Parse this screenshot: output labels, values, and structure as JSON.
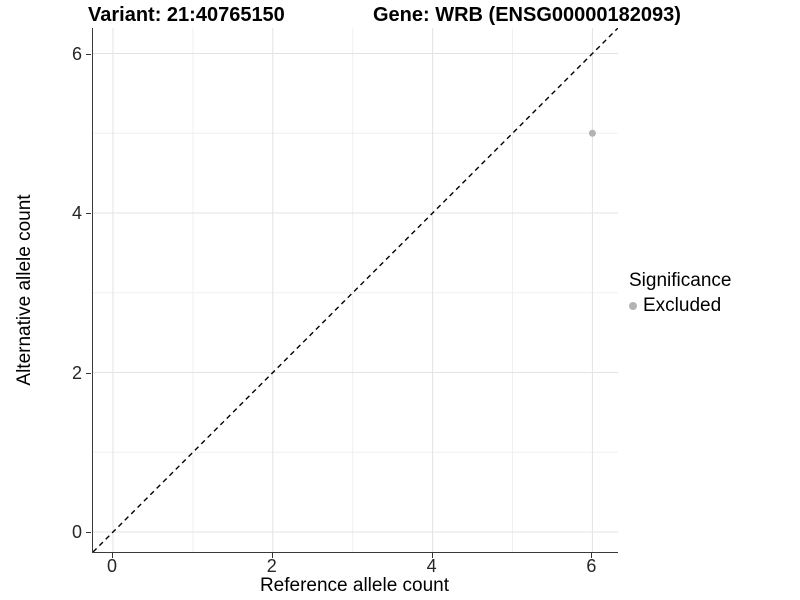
{
  "header": {
    "variant_title": "Variant: 21:40765150",
    "gene_title": "Gene: WRB (ENSG00000182093)"
  },
  "axes": {
    "x": {
      "label": "Reference allele count",
      "tick_labels": [
        "0",
        "2",
        "4",
        "6"
      ]
    },
    "y": {
      "label": "Alternative allele count",
      "tick_labels": [
        "0",
        "2",
        "4",
        "6"
      ]
    }
  },
  "legend": {
    "title": "Significance",
    "items": [
      {
        "label": "Excluded",
        "color": "#b3b3b3"
      }
    ]
  },
  "colors": {
    "background": "#ffffff",
    "axis_line": "#3a3a3a",
    "tick_mark": "#333333",
    "tick_text": "#262626",
    "grid_major": "#e3e3e3",
    "grid_minor": "#f0f0f0",
    "reference_line": "#000000",
    "point": "#b3b3b3"
  },
  "chart_data": {
    "type": "scatter",
    "title": "Variant: 21:40765150 | Gene: WRB (ENSG00000182093)",
    "xlabel": "Reference allele count",
    "ylabel": "Alternative allele count",
    "xlim": [
      -0.25,
      6.32
    ],
    "ylim": [
      -0.25,
      6.32
    ],
    "x_ticks": [
      0,
      2,
      4,
      6
    ],
    "y_ticks": [
      0,
      2,
      4,
      6
    ],
    "grid": {
      "on": true,
      "major": [
        0,
        2,
        4,
        6
      ],
      "minor": [
        1,
        3,
        5
      ]
    },
    "series": [
      {
        "name": "Excluded",
        "color": "#b3b3b3",
        "marker": "circle",
        "marker_radius_px": 3.5,
        "points": [
          {
            "x": 6,
            "y": 5
          }
        ]
      }
    ],
    "reference_line": {
      "kind": "identity",
      "equation": "y = x",
      "style": "dashed",
      "color": "#000000"
    },
    "legend_position": "right",
    "legend_title": "Significance"
  }
}
